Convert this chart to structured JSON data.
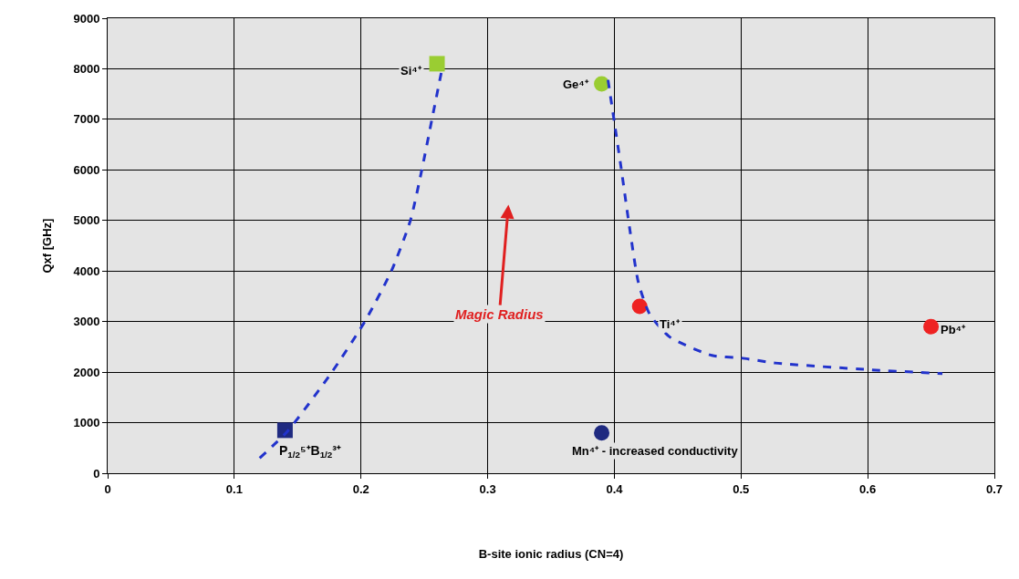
{
  "chart_data": {
    "type": "scatter",
    "xlabel": "B-site ionic radius (CN=4)",
    "ylabel": "Qxf [GHz]",
    "xlim": [
      0,
      0.7
    ],
    "xticks": [
      0,
      0.1,
      0.2,
      0.3,
      0.4,
      0.5,
      0.6,
      0.7
    ],
    "ylim": [
      0,
      9000
    ],
    "yticks": [
      0,
      1000,
      2000,
      3000,
      4000,
      5000,
      6000,
      7000,
      8000,
      9000
    ],
    "grid": true,
    "series": [
      {
        "marker": "square",
        "colors": [
          "#1f2a80",
          "#9acd32"
        ],
        "x": [
          0.14,
          0.26
        ],
        "values": [
          850,
          8100
        ]
      },
      {
        "marker": "circle",
        "colors": [
          "#9acd32",
          "#ee2222",
          "#ee2222",
          "#1f2a80"
        ],
        "x": [
          0.39,
          0.42,
          0.65,
          0.39
        ],
        "values": [
          7700,
          3300,
          2900,
          800
        ]
      },
      {
        "type": "line",
        "line_style": "dashed",
        "marker": "none",
        "color": "#2233cc",
        "x": [
          0.12,
          0.142,
          0.177,
          0.203,
          0.224,
          0.239,
          0.248,
          0.256,
          0.264
        ],
        "values": [
          300,
          830,
          2000,
          3000,
          4000,
          5000,
          6000,
          7000,
          8000
        ]
      },
      {
        "type": "line",
        "line_style": "dashed",
        "marker": "none",
        "color": "#2233cc",
        "x": [
          0.395,
          0.405,
          0.412,
          0.419,
          0.428,
          0.444,
          0.477,
          0.5,
          0.527,
          0.6,
          0.659
        ],
        "values": [
          7780,
          6100,
          4860,
          3770,
          3140,
          2690,
          2330,
          2280,
          2180,
          2050,
          1970
        ]
      }
    ],
    "annotations": [
      {
        "text": "Si⁴⁺",
        "x": 0.26,
        "y": 8100
      },
      {
        "text": "Ge⁴⁺",
        "x": 0.39,
        "y": 7700
      },
      {
        "text": "Ti⁴⁺",
        "x": 0.42,
        "y": 3300
      },
      {
        "text": "Pb⁴⁺",
        "x": 0.65,
        "y": 2900
      },
      {
        "text": "P$_{1/2}$⁵⁺B$_{1/2}$³⁺",
        "x": 0.14,
        "y": 850
      },
      {
        "text": "Mn⁴⁺ - increased conductivity",
        "x": 0.39,
        "y": 800
      },
      "Magic Radius"
    ]
  }
}
